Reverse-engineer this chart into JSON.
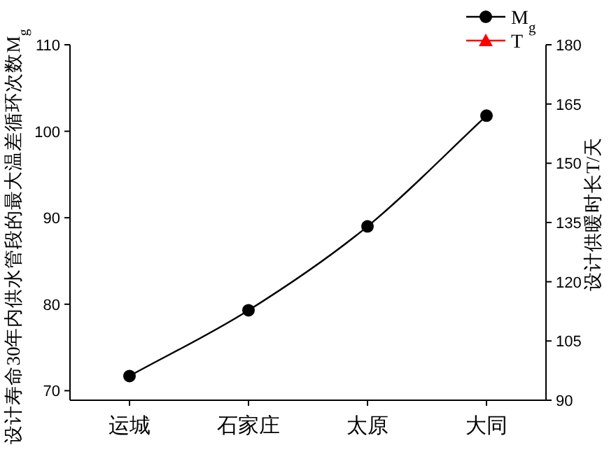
{
  "chart_data": {
    "type": "line",
    "categories": [
      "运城",
      "石家庄",
      "太原",
      "大同"
    ],
    "ylabel": "设计寿命30年内供水管段的最大温差循环次数M$_{g}$",
    "y2label": "设计供暖时长T/天",
    "ylim": [
      68.9,
      110
    ],
    "yticks": [
      70,
      80,
      90,
      100,
      110
    ],
    "y2lim": [
      90,
      180
    ],
    "y2ticks": [
      90,
      105,
      120,
      135,
      150,
      165,
      180
    ],
    "legend": "top right",
    "series": [
      {
        "name": "M$_{g}$",
        "color": "#000000",
        "marker": "circle",
        "values": [
          71.7,
          79.3,
          89.0,
          101.8
        ]
      },
      {
        "name": "T",
        "color": "#ff0000",
        "marker": "triangle",
        "values": [
          null,
          null,
          null,
          null
        ]
      }
    ]
  }
}
